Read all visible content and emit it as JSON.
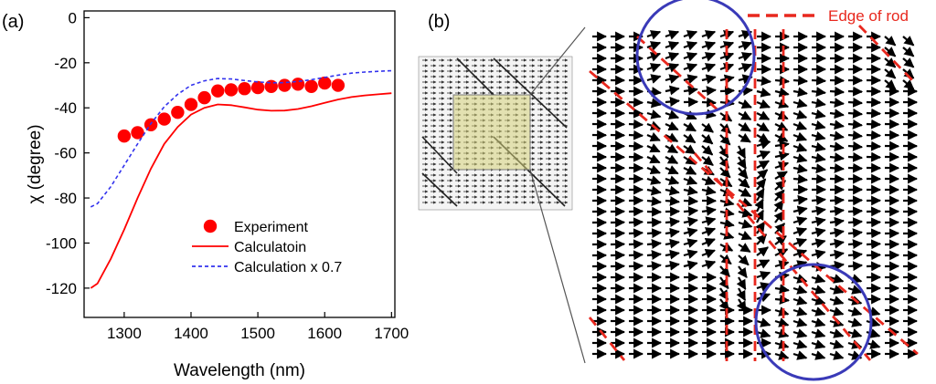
{
  "panel_a": {
    "label": "(a)",
    "chart_data": {
      "type": "line",
      "xlabel": "Wavelength (nm)",
      "ylabel": "χ (degree)",
      "xlim": [
        1240,
        1705
      ],
      "ylim": [
        -133,
        3
      ],
      "xticks": [
        1300,
        1400,
        1500,
        1600,
        1700
      ],
      "yticks": [
        0,
        -20,
        -40,
        -60,
        -80,
        -100,
        -120
      ],
      "grid": false,
      "legend_position": "bottom-right",
      "series": [
        {
          "name": "Experiment",
          "style": "markers",
          "color": "#ff0000",
          "x": [
            1300,
            1320,
            1340,
            1360,
            1380,
            1400,
            1420,
            1440,
            1460,
            1480,
            1500,
            1520,
            1540,
            1560,
            1580,
            1600,
            1620
          ],
          "y": [
            -52.5,
            -51,
            -47.5,
            -45,
            -42,
            -38.5,
            -35.5,
            -32.5,
            -32,
            -31.5,
            -31,
            -30.5,
            -30,
            -29.5,
            -30.5,
            -29,
            -30
          ]
        },
        {
          "name": "Calculatoin",
          "style": "solid",
          "color": "#ff0000",
          "x": [
            1250,
            1260,
            1280,
            1300,
            1320,
            1340,
            1360,
            1380,
            1400,
            1420,
            1440,
            1460,
            1480,
            1500,
            1520,
            1540,
            1560,
            1580,
            1600,
            1620,
            1640,
            1660,
            1680,
            1700
          ],
          "y": [
            -120,
            -118,
            -107,
            -94,
            -80,
            -67,
            -56,
            -48.5,
            -43,
            -40,
            -38.5,
            -38.8,
            -39.8,
            -40.8,
            -41.3,
            -41.2,
            -40.5,
            -39.3,
            -37.8,
            -36.3,
            -35.2,
            -34.5,
            -34,
            -33.5
          ]
        },
        {
          "name": "Calculation x 0.7",
          "style": "dashed",
          "color": "#3333ee",
          "x": [
            1250,
            1260,
            1280,
            1300,
            1320,
            1340,
            1360,
            1380,
            1400,
            1420,
            1440,
            1460,
            1480,
            1500,
            1520,
            1540,
            1560,
            1580,
            1600,
            1620,
            1640,
            1660,
            1680,
            1700
          ],
          "y": [
            -84,
            -82.5,
            -75,
            -65.5,
            -56,
            -47,
            -39.5,
            -34,
            -30,
            -28,
            -27,
            -27.2,
            -27.9,
            -28.5,
            -28.9,
            -28.8,
            -28.3,
            -27.5,
            -26.5,
            -25.5,
            -24.6,
            -24.1,
            -23.8,
            -23.5
          ]
        }
      ]
    }
  },
  "panel_b": {
    "label": "(b)",
    "legend_label": "Edge of rod",
    "colors": {
      "edge": "#e8281e",
      "circle": "#3a3ab8",
      "arrow": "#000000",
      "highlight": "#d6d27a"
    }
  }
}
